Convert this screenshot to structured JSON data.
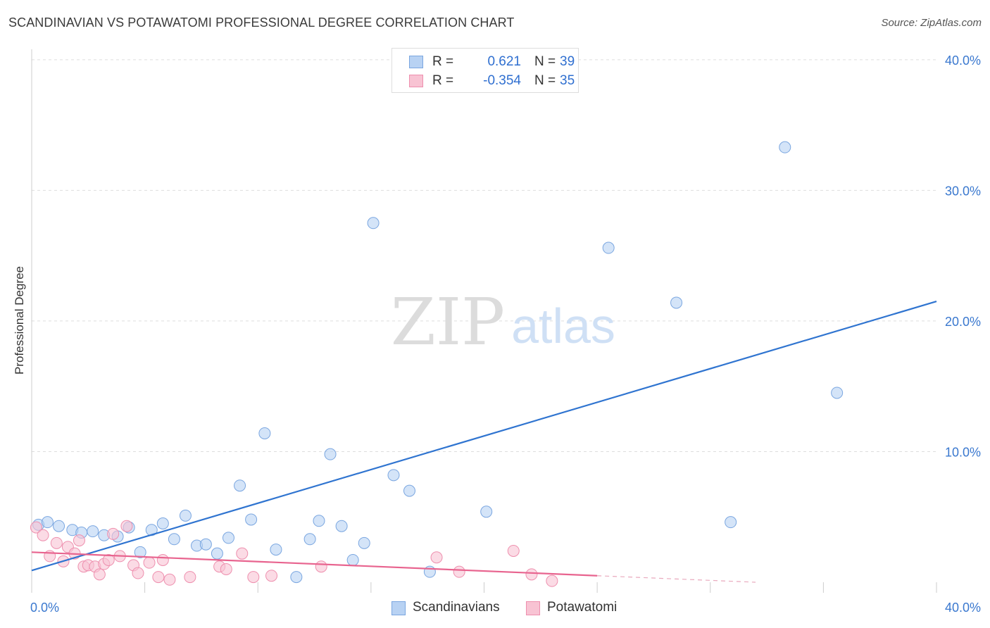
{
  "title": "SCANDINAVIAN VS POTAWATOMI PROFESSIONAL DEGREE CORRELATION CHART",
  "source": "Source: ZipAtlas.com",
  "watermark": {
    "zip": "ZIP",
    "atlas": "atlas"
  },
  "colors": {
    "blue_fill": "#b8d2f3",
    "blue_stroke": "#7aa6e0",
    "blue_line": "#2f74d0",
    "pink_fill": "#f8c3d3",
    "pink_stroke": "#ee8fae",
    "pink_line": "#e8648f",
    "grid": "#dddddd",
    "tick_label": "#3a78cf"
  },
  "stats": [
    {
      "label": "R =",
      "r": "0.621",
      "n_label": "N =",
      "n": "39",
      "color": "blue"
    },
    {
      "label": "R =",
      "r": "-0.354",
      "n_label": "N =",
      "n": "35",
      "color": "pink"
    }
  ],
  "legend": [
    {
      "label": "Scandinavians",
      "color": "blue"
    },
    {
      "label": "Potawatomi",
      "color": "pink"
    }
  ],
  "chart_data": {
    "type": "scatter",
    "title": "SCANDINAVIAN VS POTAWATOMI PROFESSIONAL DEGREE CORRELATION CHART",
    "xlabel": "",
    "ylabel": "Professional Degree",
    "xlim": [
      0,
      40
    ],
    "ylim": [
      0,
      40.8
    ],
    "x_tick_labels": [
      {
        "value": 0,
        "label": "0.0%"
      },
      {
        "value": 40,
        "label": "40.0%"
      }
    ],
    "y_tick_labels": [
      {
        "value": 10,
        "label": "10.0%"
      },
      {
        "value": 20,
        "label": "20.0%"
      },
      {
        "value": 30,
        "label": "30.0%"
      },
      {
        "value": 40,
        "label": "40.0%"
      }
    ],
    "series": [
      {
        "name": "Scandinavians",
        "color": "blue",
        "points": [
          [
            0.3,
            4.4
          ],
          [
            0.7,
            4.6
          ],
          [
            1.2,
            4.3
          ],
          [
            1.8,
            4.0
          ],
          [
            2.2,
            3.8
          ],
          [
            2.7,
            3.9
          ],
          [
            3.2,
            3.6
          ],
          [
            3.8,
            3.5
          ],
          [
            4.3,
            4.2
          ],
          [
            4.8,
            2.3
          ],
          [
            5.3,
            4.0
          ],
          [
            5.8,
            4.5
          ],
          [
            6.3,
            3.3
          ],
          [
            6.8,
            5.1
          ],
          [
            7.3,
            2.8
          ],
          [
            7.7,
            2.9
          ],
          [
            8.2,
            2.2
          ],
          [
            8.7,
            3.4
          ],
          [
            9.2,
            7.4
          ],
          [
            9.7,
            4.8
          ],
          [
            10.3,
            11.4
          ],
          [
            10.8,
            2.5
          ],
          [
            11.7,
            0.4
          ],
          [
            12.3,
            3.3
          ],
          [
            12.7,
            4.7
          ],
          [
            13.2,
            9.8
          ],
          [
            13.7,
            4.3
          ],
          [
            14.2,
            1.7
          ],
          [
            14.7,
            3.0
          ],
          [
            15.1,
            27.5
          ],
          [
            16.0,
            8.2
          ],
          [
            16.7,
            7.0
          ],
          [
            17.6,
            0.8
          ],
          [
            20.1,
            5.4
          ],
          [
            25.5,
            25.6
          ],
          [
            28.5,
            21.4
          ],
          [
            30.9,
            4.6
          ],
          [
            33.3,
            33.3
          ],
          [
            35.6,
            14.5
          ]
        ],
        "trend": {
          "x": [
            0,
            40
          ],
          "y": [
            0.9,
            21.5
          ]
        }
      },
      {
        "name": "Potawatomi",
        "color": "pink",
        "points": [
          [
            0.2,
            4.2
          ],
          [
            0.5,
            3.6
          ],
          [
            0.8,
            2.0
          ],
          [
            1.1,
            3.0
          ],
          [
            1.4,
            1.6
          ],
          [
            1.6,
            2.7
          ],
          [
            1.9,
            2.2
          ],
          [
            2.1,
            3.2
          ],
          [
            2.3,
            1.2
          ],
          [
            2.5,
            1.3
          ],
          [
            2.8,
            1.2
          ],
          [
            3.0,
            0.6
          ],
          [
            3.2,
            1.4
          ],
          [
            3.4,
            1.7
          ],
          [
            3.6,
            3.7
          ],
          [
            3.9,
            2.0
          ],
          [
            4.2,
            4.3
          ],
          [
            4.5,
            1.3
          ],
          [
            4.7,
            0.7
          ],
          [
            5.2,
            1.5
          ],
          [
            5.6,
            0.4
          ],
          [
            5.8,
            1.7
          ],
          [
            6.1,
            0.2
          ],
          [
            7.0,
            0.4
          ],
          [
            8.3,
            1.2
          ],
          [
            8.6,
            1.0
          ],
          [
            9.3,
            2.2
          ],
          [
            9.8,
            0.4
          ],
          [
            10.6,
            0.5
          ],
          [
            12.8,
            1.2
          ],
          [
            17.9,
            1.9
          ],
          [
            18.9,
            0.8
          ],
          [
            21.3,
            2.4
          ],
          [
            22.1,
            0.6
          ],
          [
            23.0,
            0.1
          ]
        ],
        "trend": {
          "x": [
            0,
            25.0
          ],
          "y": [
            2.3,
            0.5
          ]
        },
        "trend_extension": {
          "x": [
            25.0,
            32.0
          ],
          "y": [
            0.5,
            0.0
          ]
        }
      }
    ]
  }
}
